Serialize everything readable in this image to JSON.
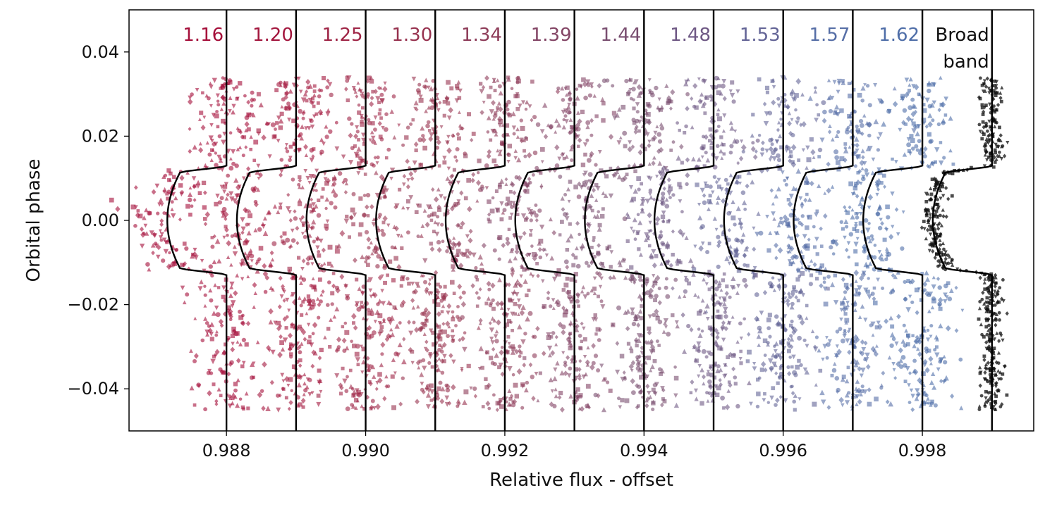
{
  "chart_data": {
    "type": "scatter",
    "xlabel": "Relative flux - offset",
    "ylabel": "Orbital phase",
    "xlim": [
      0.9866,
      0.9996
    ],
    "ylim": [
      -0.05,
      0.05
    ],
    "xticks": [
      0.988,
      0.99,
      0.992,
      0.994,
      0.996,
      0.998
    ],
    "xtick_labels": [
      "0.988",
      "0.990",
      "0.992",
      "0.994",
      "0.996",
      "0.998"
    ],
    "yticks": [
      0.04,
      0.02,
      0.0,
      -0.02,
      -0.04
    ],
    "ytick_labels": [
      "0.04",
      "0.02",
      "0.00",
      "−0.02",
      "−0.04"
    ],
    "grid": false,
    "model": {
      "transit_depth": 0.00085,
      "ingress_phase": 0.0128,
      "full_depth_phase": 0.0115
    },
    "phase_range": [
      -0.045,
      0.034
    ],
    "series": [
      {
        "name": "1.16",
        "baseline": 0.988,
        "color": "#a50f3a",
        "scatter": 0.00025
      },
      {
        "name": "1.20",
        "baseline": 0.989,
        "color": "#a3173e",
        "scatter": 0.00024
      },
      {
        "name": "1.25",
        "baseline": 0.99,
        "color": "#9f2546",
        "scatter": 0.00024
      },
      {
        "name": "1.30",
        "baseline": 0.991,
        "color": "#97324f",
        "scatter": 0.00023
      },
      {
        "name": "1.34",
        "baseline": 0.992,
        "color": "#8d3b58",
        "scatter": 0.00023
      },
      {
        "name": "1.39",
        "baseline": 0.993,
        "color": "#834565",
        "scatter": 0.00023
      },
      {
        "name": "1.44",
        "baseline": 0.994,
        "color": "#794e70",
        "scatter": 0.00023
      },
      {
        "name": "1.48",
        "baseline": 0.995,
        "color": "#6e5884",
        "scatter": 0.00023
      },
      {
        "name": "1.53",
        "baseline": 0.996,
        "color": "#636496",
        "scatter": 0.00023
      },
      {
        "name": "1.57",
        "baseline": 0.997,
        "color": "#566ea6",
        "scatter": 0.00023
      },
      {
        "name": "1.62",
        "baseline": 0.998,
        "color": "#4f6ea8",
        "scatter": 0.00023
      },
      {
        "name": "Broad band",
        "label_lines": [
          "Broad",
          "band"
        ],
        "baseline": 0.999,
        "color": "#111111",
        "scatter": 8e-05
      }
    ]
  }
}
